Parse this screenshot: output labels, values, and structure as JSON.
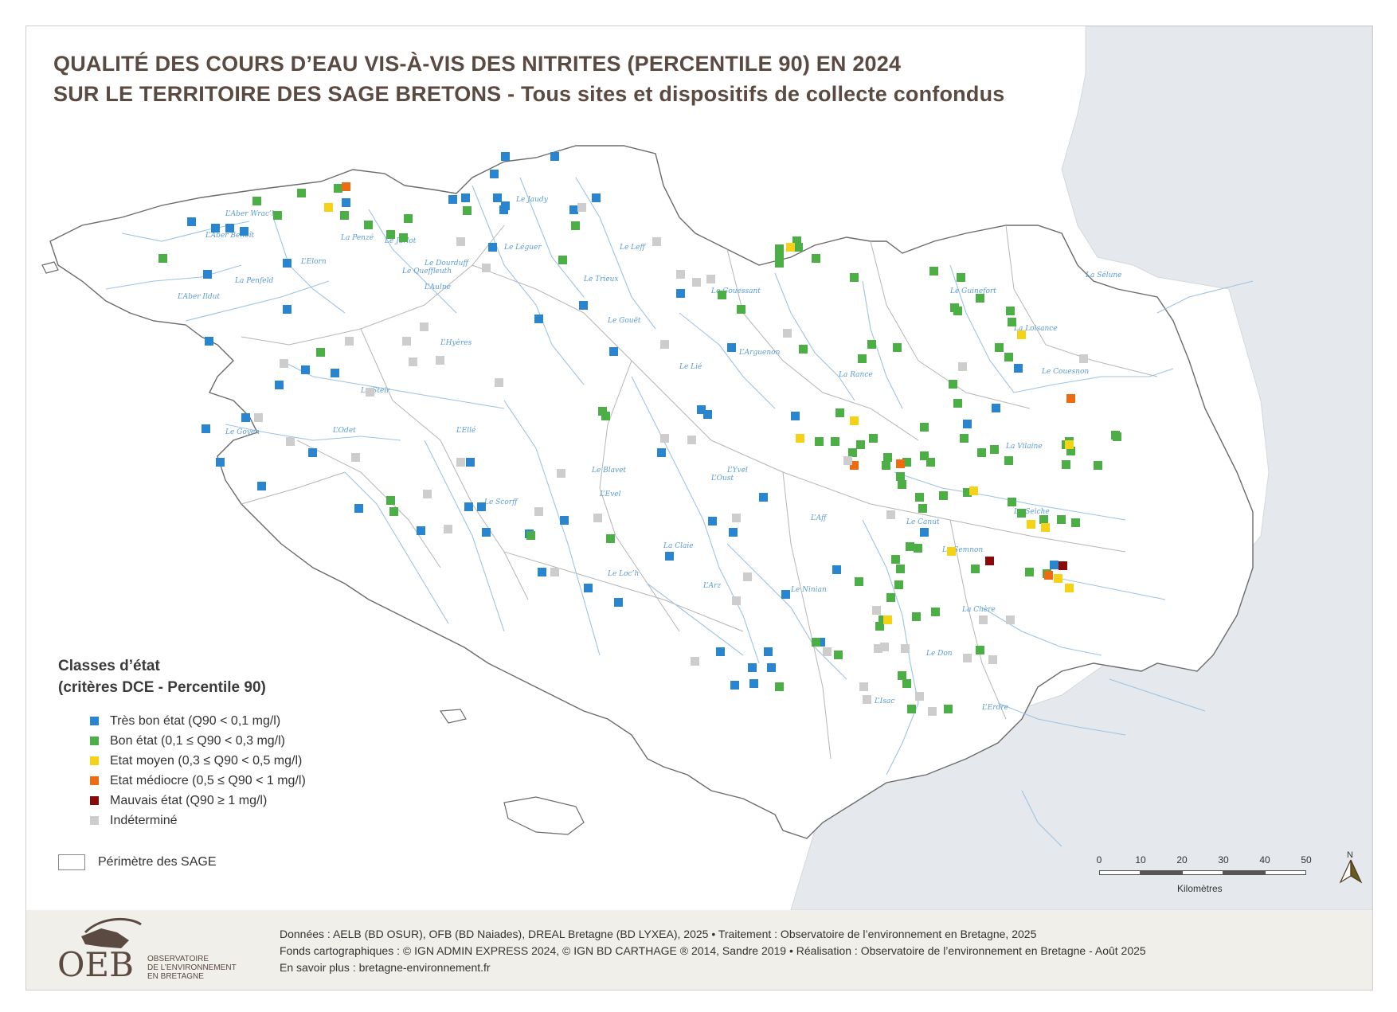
{
  "title": {
    "line1": "QUALITÉ DES COURS D’EAU VIS-À-VIS DES NITRITES (PERCENTILE 90) EN 2024",
    "line2": "SUR LE TERRITOIRE DES SAGE BRETONS - Tous sites et dispositifs de collecte confondus"
  },
  "legend": {
    "heading1": "Classes d’état",
    "heading2": "(critères DCE - Percentile 90)",
    "items": [
      {
        "label": "Très bon état (Q90 < 0,1 mg/l)",
        "color": "#2a85d1"
      },
      {
        "label": "Bon état (0,1 ≤ Q90 < 0,3 mg/l)",
        "color": "#4caf45"
      },
      {
        "label": "Etat moyen (0,3 ≤ Q90 < 0,5 mg/l)",
        "color": "#f5d216"
      },
      {
        "label": "Etat médiocre (0,5 ≤ Q90 < 1 mg/l)",
        "color": "#ef6b12"
      },
      {
        "label": "Mauvais état (Q90 ≥ 1 mg/l)",
        "color": "#8a0a0a"
      },
      {
        "label": "Indéterminé",
        "color": "#cdcdcd"
      }
    ],
    "perimeter_label": "Périmètre des SAGE"
  },
  "scale": {
    "ticks": [
      "0",
      "10",
      "20",
      "30",
      "40",
      "50"
    ],
    "unit": "Kilomètres",
    "north": "N"
  },
  "rivers": [
    "L’Aber Wrac’h",
    "L’Aber Benoît",
    "L’Aber Ildut",
    "La Penfeld",
    "L’Elorn",
    "La Penzé",
    "Le Jarlot",
    "Le Queffleuth",
    "Le Dourduff",
    "Le Léguer",
    "Le Jaudy",
    "Le Trieux",
    "Le Leff",
    "Le Gouët",
    "Le Gouessant",
    "L’Arguenon",
    "La Rance",
    "Le Guinefort",
    "Le Couesnon",
    "La Loisance",
    "La Sélune",
    "La Vilaine",
    "La Seiche",
    "Le Semnon",
    "La Chère",
    "Le Don",
    "L’Erdre",
    "L’Isac",
    "L’Oust",
    "La Claie",
    "L’Arz",
    "Le Blavet",
    "L’Evel",
    "Le Scorff",
    "L’Ellé",
    "L’Aulne",
    "L’Hyères",
    "Le Goyen",
    "L’Odet",
    "Le Steir",
    "Le Loc’h",
    "Le Ninian",
    "Le Lié",
    "L’Yvel",
    "L’Aff",
    "Le Canut"
  ],
  "footer": {
    "line1": "Données : AELB (BD OSUR), OFB (BD Naiades), DREAL Bretagne (BD LYXEA), 2025 • Traitement : Observatoire de l’environnement en Bretagne, 2025",
    "line2": "Fonds cartographiques : © IGN ADMIN EXPRESS 2024, © IGN BD CARTHAGE ® 2014, Sandre 2019 • Réalisation : Observatoire de l’environnement en Bretagne - Août 2025",
    "line3": "En savoir plus : bretagne-environnement.fr",
    "logo_text": "OEB",
    "logo_sub1": "OBSERVATOIRE",
    "logo_sub2": "DE L’ENVIRONNEMENT",
    "logo_sub3": "EN BRETAGNE"
  }
}
